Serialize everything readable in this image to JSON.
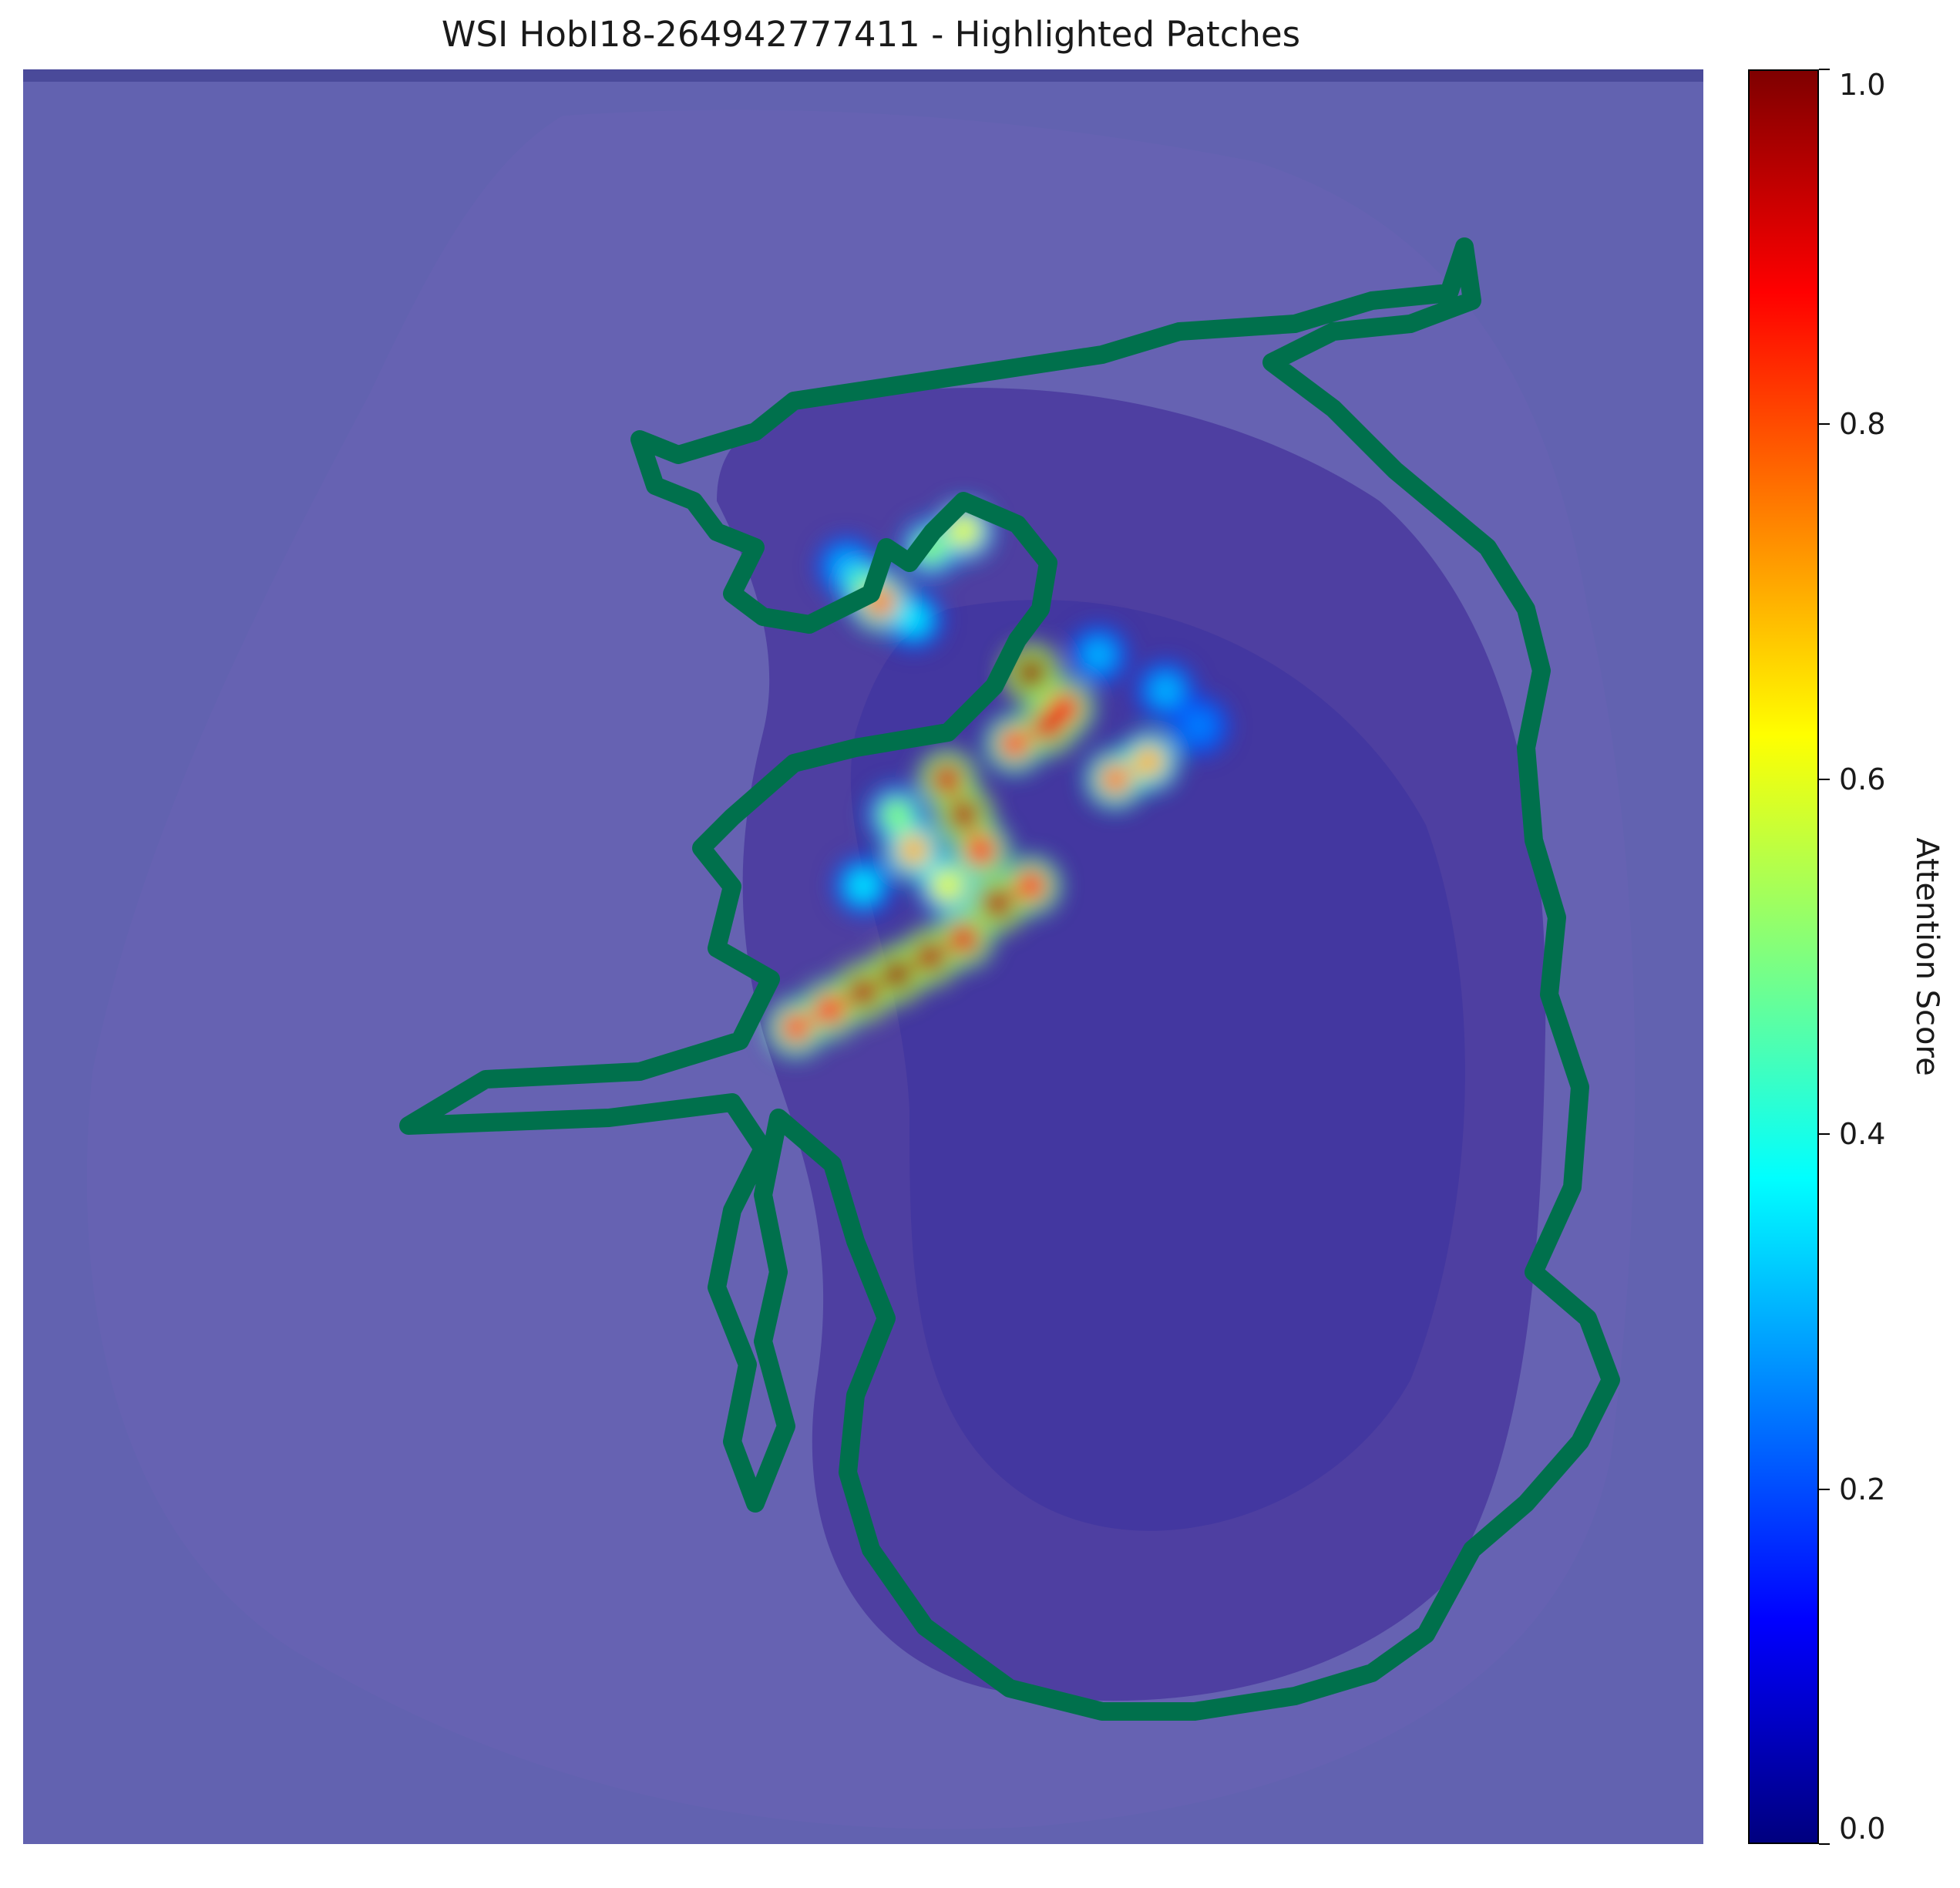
{
  "chart_data": {
    "type": "heatmap",
    "title": "WSI HobI18-264942777411 - Highlighted Patches",
    "colorbar": {
      "label": "Attention Score",
      "colormap": "jet",
      "range": [
        0.0,
        1.0
      ],
      "ticks": [
        "0.0",
        "0.2",
        "0.4",
        "0.6",
        "0.8",
        "1.0"
      ],
      "tick_values": [
        0.0,
        0.2,
        0.4,
        0.6,
        0.8,
        1.0
      ]
    },
    "colors": {
      "background_overlay": "#6060b0",
      "tissue": "#4a3aa0",
      "annotation_outline": "#006b4c"
    },
    "hotspots": [
      {
        "x": 0.56,
        "y": 0.42,
        "score": 0.95
      },
      {
        "x": 0.55,
        "y": 0.4,
        "score": 0.92
      },
      {
        "x": 0.57,
        "y": 0.44,
        "score": 0.85
      },
      {
        "x": 0.6,
        "y": 0.34,
        "score": 0.98
      },
      {
        "x": 0.61,
        "y": 0.37,
        "score": 0.9
      },
      {
        "x": 0.62,
        "y": 0.36,
        "score": 0.88
      },
      {
        "x": 0.59,
        "y": 0.38,
        "score": 0.8
      },
      {
        "x": 0.48,
        "y": 0.53,
        "score": 0.85
      },
      {
        "x": 0.5,
        "y": 0.52,
        "score": 0.95
      },
      {
        "x": 0.52,
        "y": 0.51,
        "score": 0.97
      },
      {
        "x": 0.54,
        "y": 0.5,
        "score": 0.95
      },
      {
        "x": 0.56,
        "y": 0.49,
        "score": 0.9
      },
      {
        "x": 0.58,
        "y": 0.47,
        "score": 0.95
      },
      {
        "x": 0.6,
        "y": 0.46,
        "score": 0.85
      },
      {
        "x": 0.46,
        "y": 0.54,
        "score": 0.8
      },
      {
        "x": 0.53,
        "y": 0.44,
        "score": 0.7
      },
      {
        "x": 0.55,
        "y": 0.46,
        "score": 0.6
      },
      {
        "x": 0.65,
        "y": 0.4,
        "score": 0.75
      },
      {
        "x": 0.67,
        "y": 0.39,
        "score": 0.7
      },
      {
        "x": 0.56,
        "y": 0.26,
        "score": 0.6
      },
      {
        "x": 0.54,
        "y": 0.27,
        "score": 0.5
      },
      {
        "x": 0.5,
        "y": 0.29,
        "score": 0.45
      },
      {
        "x": 0.51,
        "y": 0.3,
        "score": 0.75
      },
      {
        "x": 0.49,
        "y": 0.28,
        "score": 0.3
      },
      {
        "x": 0.53,
        "y": 0.31,
        "score": 0.35
      },
      {
        "x": 0.64,
        "y": 0.33,
        "score": 0.3
      },
      {
        "x": 0.68,
        "y": 0.35,
        "score": 0.3
      },
      {
        "x": 0.7,
        "y": 0.37,
        "score": 0.25
      },
      {
        "x": 0.52,
        "y": 0.42,
        "score": 0.5
      },
      {
        "x": 0.5,
        "y": 0.46,
        "score": 0.35
      }
    ]
  }
}
